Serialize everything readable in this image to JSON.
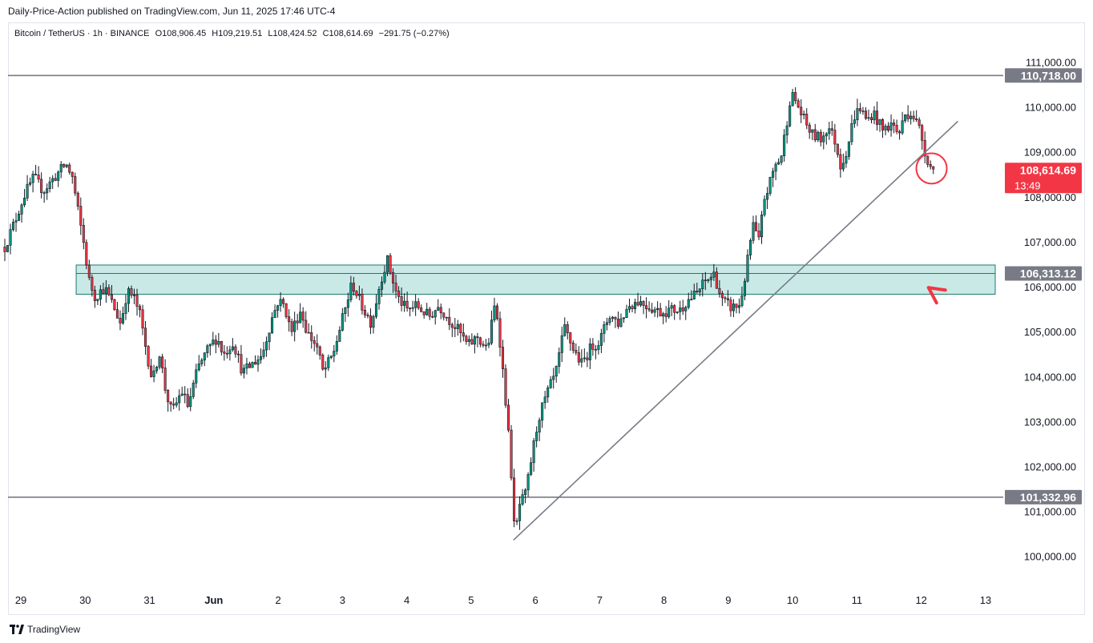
{
  "header": {
    "published": "Daily-Price-Action published on TradingView.com, Jun 11, 2025 17:46 UTC-4"
  },
  "legend": {
    "symbol": "Bitcoin / TetherUS · 1h · BINANCE",
    "open": "O108,906.45",
    "high": "H109,219.51",
    "low": "L108,424.52",
    "close": "C108,614.69",
    "change": "−291.75 (−0.27%)"
  },
  "footer": {
    "brand": "TradingView",
    "logo_icon": "tradingview-logo-icon"
  },
  "colors": {
    "up": "#089981",
    "down": "#f23645",
    "zone_fill": "#b2dfdb",
    "zone_stroke": "#1b7a6e",
    "level_line": "#787b86",
    "trendline": "#787b86",
    "price_badge": "#f23645",
    "level_badge": "#787b86",
    "annotation": "#f23645"
  },
  "chart_data": {
    "type": "candlestick",
    "title": "Bitcoin / TetherUS · 1h · BINANCE",
    "y_axis": {
      "ticks": [
        100000,
        101000,
        102000,
        103000,
        104000,
        105000,
        106000,
        107000,
        108000,
        109000,
        110000,
        111000
      ],
      "tick_labels": [
        "100,000.00",
        "101,000.00",
        "102,000.00",
        "103,000.00",
        "104,000.00",
        "105,000.00",
        "106,000.00",
        "107,000.00",
        "108,000.00",
        "109,000.00",
        "110,000.00",
        "111,000.00"
      ],
      "range": [
        99300,
        111400
      ]
    },
    "x_axis": {
      "ticks": [
        0,
        1,
        2,
        3,
        4,
        5,
        6,
        7,
        8,
        9,
        10,
        11,
        12,
        13,
        14,
        15
      ],
      "tick_labels": [
        "29",
        "30",
        "31",
        "Jun",
        "2",
        "3",
        "4",
        "5",
        "6",
        "7",
        "8",
        "9",
        "10",
        "11",
        "12",
        "13"
      ],
      "range": [
        -0.2,
        15.2
      ],
      "unit": "days (tick 0 = May 29)"
    },
    "horizontal_levels": [
      {
        "value": 110718.0,
        "label": "110,718.00"
      },
      {
        "value": 101332.96,
        "label": "101,332.96"
      }
    ],
    "zone": {
      "low": 105850,
      "high": 106500,
      "x_start": 0.86,
      "x_end": 15.15,
      "mid_value": 106313.12,
      "mid_label": "106,313.12"
    },
    "trendline": {
      "x1": 7.66,
      "y1": 100380,
      "x2": 14.57,
      "y2": 109700
    },
    "current_price": {
      "value": 108614.69,
      "label": "108,614.69",
      "countdown": "13:49"
    },
    "circle_marker": {
      "x": 14.16,
      "y": 108650
    },
    "arrow_marker": {
      "x": 14.2,
      "y": 106050
    },
    "anchors": [
      [
        -0.25,
        106900
      ],
      [
        -0.1,
        107450
      ],
      [
        0.05,
        108050
      ],
      [
        0.2,
        108450
      ],
      [
        0.35,
        108150
      ],
      [
        0.55,
        108500
      ],
      [
        0.7,
        108750
      ],
      [
        0.8,
        108450
      ],
      [
        0.9,
        107600
      ],
      [
        1.0,
        106800
      ],
      [
        1.05,
        106200
      ],
      [
        1.15,
        105800
      ],
      [
        1.3,
        106000
      ],
      [
        1.45,
        105550
      ],
      [
        1.55,
        105200
      ],
      [
        1.65,
        105900
      ],
      [
        1.75,
        105800
      ],
      [
        1.85,
        105400
      ],
      [
        1.95,
        104600
      ],
      [
        2.05,
        103900
      ],
      [
        2.15,
        104600
      ],
      [
        2.25,
        103700
      ],
      [
        2.35,
        103200
      ],
      [
        2.5,
        103700
      ],
      [
        2.6,
        103350
      ],
      [
        2.75,
        104200
      ],
      [
        2.9,
        104600
      ],
      [
        3.05,
        104900
      ],
      [
        3.15,
        104500
      ],
      [
        3.3,
        104800
      ],
      [
        3.45,
        104100
      ],
      [
        3.6,
        104300
      ],
      [
        3.75,
        104500
      ],
      [
        3.9,
        105300
      ],
      [
        4.0,
        105700
      ],
      [
        4.1,
        105600
      ],
      [
        4.2,
        105000
      ],
      [
        4.35,
        105500
      ],
      [
        4.45,
        105000
      ],
      [
        4.6,
        104700
      ],
      [
        4.7,
        104100
      ],
      [
        4.85,
        104500
      ],
      [
        5.0,
        105300
      ],
      [
        5.15,
        106100
      ],
      [
        5.3,
        105600
      ],
      [
        5.45,
        105200
      ],
      [
        5.6,
        106200
      ],
      [
        5.7,
        106600
      ],
      [
        5.85,
        105800
      ],
      [
        6.0,
        105500
      ],
      [
        6.15,
        105600
      ],
      [
        6.35,
        105350
      ],
      [
        6.5,
        105600
      ],
      [
        6.65,
        105300
      ],
      [
        6.8,
        105050
      ],
      [
        6.95,
        104700
      ],
      [
        7.1,
        104900
      ],
      [
        7.25,
        104600
      ],
      [
        7.38,
        105700
      ],
      [
        7.45,
        104800
      ],
      [
        7.55,
        103300
      ],
      [
        7.62,
        102000
      ],
      [
        7.68,
        100400
      ],
      [
        7.75,
        101150
      ],
      [
        7.85,
        101400
      ],
      [
        7.95,
        102300
      ],
      [
        8.05,
        103100
      ],
      [
        8.2,
        103700
      ],
      [
        8.32,
        104100
      ],
      [
        8.45,
        105100
      ],
      [
        8.6,
        104600
      ],
      [
        8.72,
        104300
      ],
      [
        8.88,
        104700
      ],
      [
        9.0,
        104800
      ],
      [
        9.15,
        105400
      ],
      [
        9.3,
        105200
      ],
      [
        9.45,
        105600
      ],
      [
        9.6,
        105700
      ],
      [
        9.8,
        105550
      ],
      [
        9.95,
        105450
      ],
      [
        10.1,
        105500
      ],
      [
        10.25,
        105500
      ],
      [
        10.35,
        105700
      ],
      [
        10.5,
        105850
      ],
      [
        10.62,
        106100
      ],
      [
        10.78,
        106300
      ],
      [
        10.9,
        105700
      ],
      [
        11.05,
        105550
      ],
      [
        11.18,
        105600
      ],
      [
        11.28,
        106400
      ],
      [
        11.38,
        107400
      ],
      [
        11.48,
        107000
      ],
      [
        11.55,
        107950
      ],
      [
        11.62,
        108200
      ],
      [
        11.72,
        108700
      ],
      [
        11.82,
        108900
      ],
      [
        11.9,
        109600
      ],
      [
        11.97,
        110300
      ],
      [
        12.05,
        110150
      ],
      [
        12.15,
        109800
      ],
      [
        12.3,
        109400
      ],
      [
        12.45,
        109300
      ],
      [
        12.55,
        109600
      ],
      [
        12.65,
        109300
      ],
      [
        12.75,
        108700
      ],
      [
        12.85,
        109100
      ],
      [
        12.95,
        109800
      ],
      [
        13.05,
        110000
      ],
      [
        13.15,
        109700
      ],
      [
        13.25,
        109900
      ],
      [
        13.4,
        109500
      ],
      [
        13.55,
        109650
      ],
      [
        13.65,
        109400
      ],
      [
        13.75,
        109850
      ],
      [
        13.85,
        109900
      ],
      [
        13.98,
        109500
      ],
      [
        14.08,
        108900
      ],
      [
        14.16,
        108650
      ],
      [
        14.22,
        108614.69
      ]
    ]
  }
}
